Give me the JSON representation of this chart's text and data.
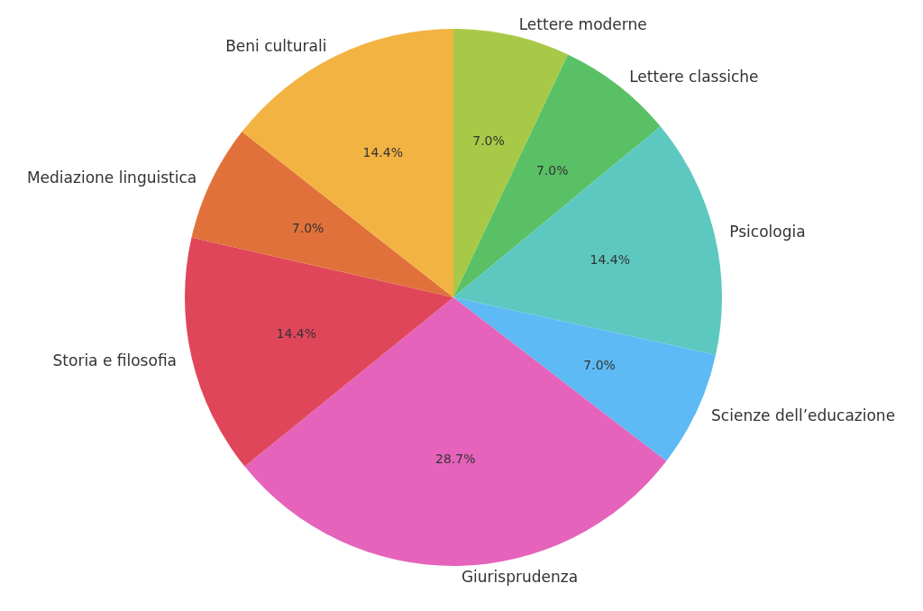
{
  "chart_data": {
    "type": "pie",
    "categories": [
      "Lettere moderne",
      "Lettere classiche",
      "Psicologia",
      "Scienze dell’educazione",
      "Giurisprudenza",
      "Storia e filosofia",
      "Mediazione linguistica",
      "Beni culturali"
    ],
    "values": [
      7.0,
      7.0,
      14.4,
      7.0,
      28.7,
      14.4,
      7.0,
      14.4
    ],
    "value_labels": [
      "7.0%",
      "7.0%",
      "14.4%",
      "7.0%",
      "28.7%",
      "14.4%",
      "7.0%",
      "14.4%"
    ],
    "colors": [
      "#a8c947",
      "#59c066",
      "#5dc8c0",
      "#5ebaf5",
      "#e563bb",
      "#e04659",
      "#e1713a",
      "#f2b342"
    ],
    "legend": false
  }
}
